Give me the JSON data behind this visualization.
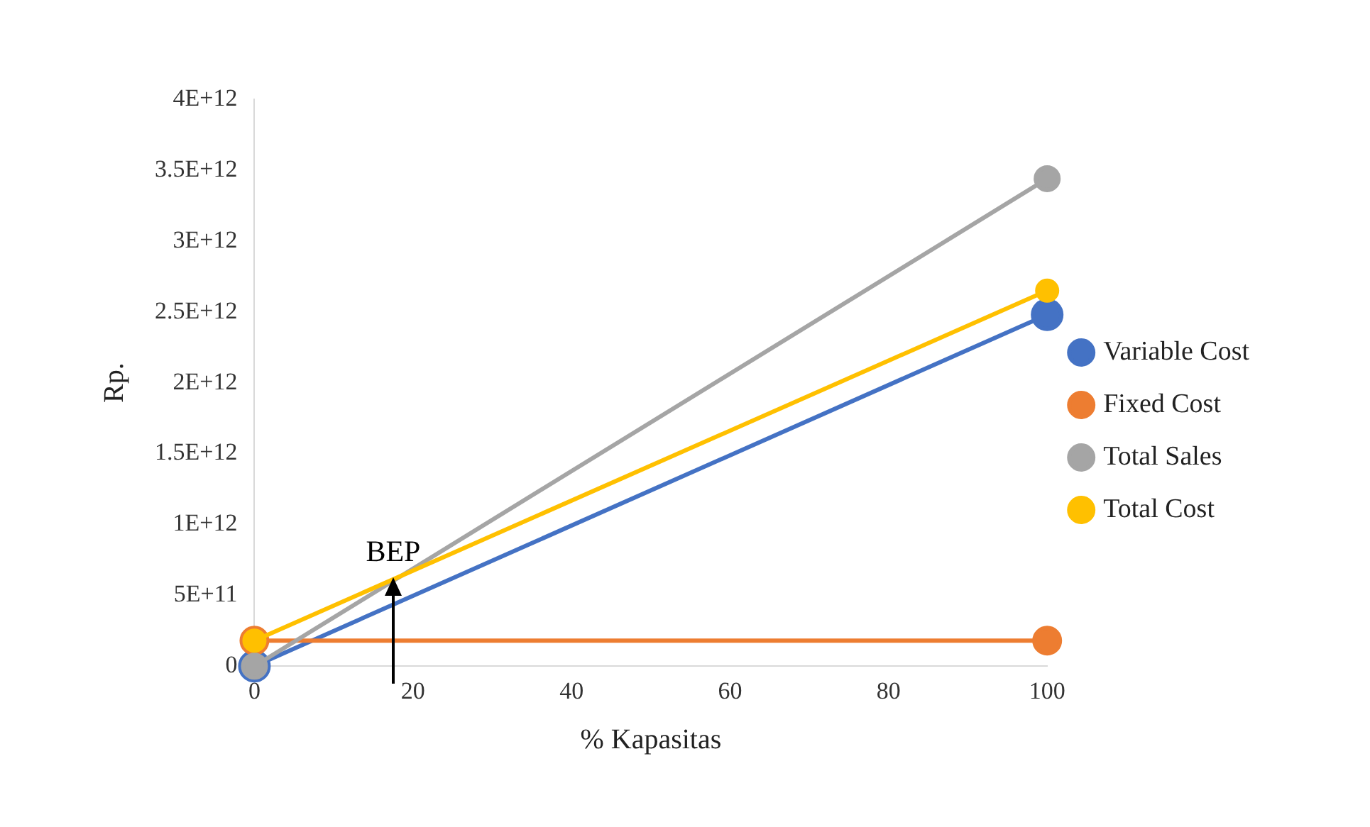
{
  "chart_data": {
    "type": "line",
    "xlabel": "% Kapasitas",
    "ylabel": "Rp.",
    "x": [
      0,
      100
    ],
    "series": [
      {
        "name": "Variable Cost",
        "color": "#4472c4",
        "values": [
          0,
          2480000000000
        ]
      },
      {
        "name": "Fixed Cost",
        "color": "#ed7d31",
        "values": [
          180000000000,
          180000000000
        ]
      },
      {
        "name": "Total Sales",
        "color": "#a5a5a5",
        "values": [
          0,
          3440000000000
        ]
      },
      {
        "name": "Total Cost",
        "color": "#ffc000",
        "values": [
          180000000000,
          2650000000000
        ]
      }
    ],
    "xlim": [
      0,
      100
    ],
    "xticks": [
      0,
      20,
      40,
      60,
      80,
      100
    ],
    "ylim": [
      0,
      4000000000000
    ],
    "yticks": [
      0,
      {
        "value": 500000000000,
        "label": "5E+11"
      },
      {
        "value": 1000000000000,
        "label": "1E+12"
      },
      {
        "value": 1500000000000,
        "label": "1.5E+12"
      },
      {
        "value": 2000000000000,
        "label": "2E+12"
      },
      {
        "value": 2500000000000,
        "label": "2.5E+12"
      },
      {
        "value": 3000000000000,
        "label": "3E+12"
      },
      {
        "value": 3500000000000,
        "label": "3.5E+12"
      },
      {
        "value": 4000000000000,
        "label": "4E+12"
      }
    ],
    "annotations": [
      {
        "text": "BEP",
        "x": 17.5,
        "y": 630000000000
      }
    ],
    "grid": false,
    "legend": "right",
    "marker": "circle",
    "line_style": "solid"
  }
}
